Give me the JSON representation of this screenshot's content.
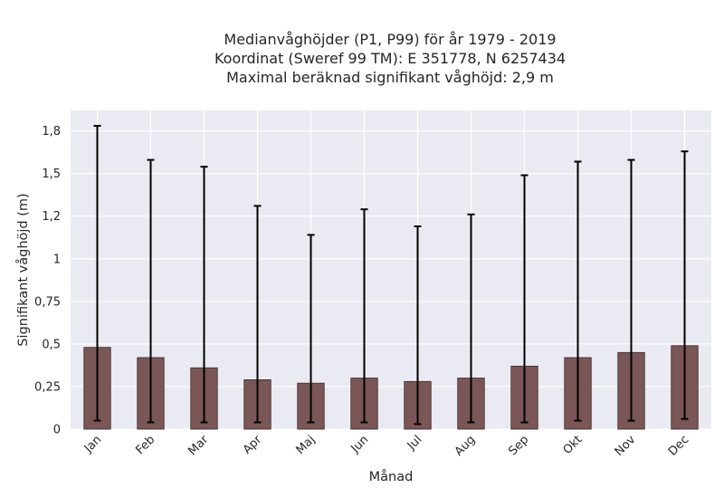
{
  "chart_data": {
    "type": "bar",
    "title_lines": [
      "Medianvåghöjder (P1, P99) för år 1979 - 2019",
      "Koordinat (Sweref 99 TM): E 351778, N 6257434",
      "Maximal beräknad signifikant våghöjd: 2,9 m"
    ],
    "xlabel": "Månad",
    "ylabel": "Signifikant våghöjd (m)",
    "categories": [
      "Jan",
      "Feb",
      "Mar",
      "Apr",
      "Maj",
      "Jun",
      "Jul",
      "Aug",
      "Sep",
      "Okt",
      "Nov",
      "Dec"
    ],
    "series": [
      {
        "values": [
          0.48,
          0.42,
          0.36,
          0.29,
          0.27,
          0.3,
          0.28,
          0.3,
          0.37,
          0.42,
          0.45,
          0.49
        ],
        "error_low": [
          0.05,
          0.04,
          0.04,
          0.04,
          0.04,
          0.04,
          0.03,
          0.04,
          0.04,
          0.05,
          0.05,
          0.06
        ],
        "error_high": [
          1.78,
          1.58,
          1.54,
          1.31,
          1.14,
          1.29,
          1.19,
          1.26,
          1.49,
          1.57,
          1.58,
          1.63
        ]
      }
    ],
    "ylim": [
      0,
      1.87
    ],
    "yticks": [
      0,
      0.25,
      0.5,
      0.75,
      1,
      1.25,
      1.5,
      1.75
    ],
    "ytick_labels": [
      "0",
      "0,25",
      "0,5",
      "0,75",
      "1",
      "1,2",
      "1,5",
      "1,8"
    ],
    "grid": true,
    "colors": {
      "bar_fill": "#7b5656",
      "bar_edge": "#3a2a2a",
      "error_bar": "#000000",
      "plot_background": "#eaeaf2",
      "grid": "#ffffff"
    }
  }
}
